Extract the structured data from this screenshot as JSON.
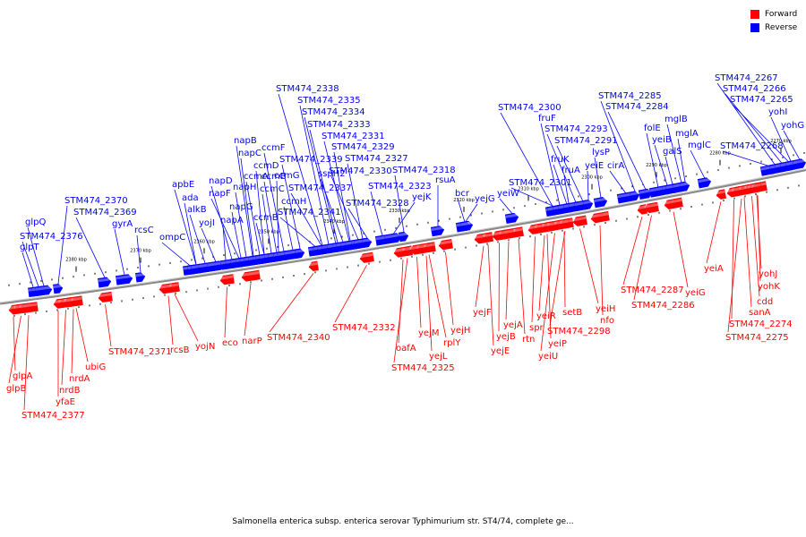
{
  "caption": "Salmonella enterica subsp. enterica serovar Typhimurium str. ST4/74, complete ge...",
  "legend": [
    {
      "label": "Forward",
      "color": "#ff0000"
    },
    {
      "label": "Reverse",
      "color": "#0000ff"
    }
  ],
  "colors": {
    "forward": "#ff0000",
    "reverse": "#0000ff",
    "backbone": "#888888",
    "tick_text": "#000000"
  },
  "ticks": [
    "2380 kbp",
    "2370 kbp",
    "2360 kbp",
    "2350 kbp",
    "2340 kbp",
    "2330 kbp",
    "2320 kbp",
    "2310 kbp",
    "2300 kbp",
    "2290 kbp",
    "2280 kbp",
    "2270 kbp"
  ],
  "reverse_genes": [
    "glpT",
    "STM474_2376",
    "glpQ",
    "STM474_2370",
    "STM474_2369",
    "gyrA",
    "rcsC",
    "ompC",
    "apbE",
    "ada",
    "alkB",
    "yojI",
    "napA",
    "napD",
    "napF",
    "napG",
    "napH",
    "napB",
    "napC",
    "ccmA",
    "ccmB",
    "ccmD",
    "ccmC",
    "ccmE",
    "ccmG",
    "ccmF",
    "ccmH",
    "STM474_2339",
    "STM474_2341",
    "STM474_2337",
    "STM474_2338",
    "STM474_2335",
    "STM474_2334",
    "STM474_2333",
    "sspH2",
    "STM474_2331",
    "STM474_2329",
    "STM474_2330",
    "STM474_2327",
    "STM474_2328",
    "STM474_2323",
    "yejK",
    "STM474_2318",
    "rsuA",
    "bcr",
    "yejG",
    "yeiW",
    "STM474_2301",
    "STM474_2300",
    "fruF",
    "fruK",
    "fruA",
    "STM474_2293",
    "STM474_2291",
    "yeiE",
    "lysP",
    "cirA",
    "STM474_2285",
    "STM474_2284",
    "folE",
    "yeiB",
    "galS",
    "mglB",
    "mglA",
    "mglC",
    "STM474_2268",
    "STM474_2267",
    "STM474_2266",
    "STM474_2265",
    "yohI",
    "yohG"
  ],
  "forward_genes": [
    "glpA",
    "glpB",
    "STM474_2377",
    "yfaE",
    "nrdB",
    "nrdA",
    "ubiG",
    "STM474_2371",
    "rcsB",
    "yojN",
    "eco",
    "narP",
    "STM474_2340",
    "STM474_2332",
    "oafA",
    "STM474_2325",
    "yejM",
    "yejL",
    "rplY",
    "yejH",
    "yejF",
    "yejE",
    "yejB",
    "yejA",
    "rtn",
    "spr",
    "yeiR",
    "yeiP",
    "yeiU",
    "setB",
    "STM474_2298",
    "yeiH",
    "nfo",
    "STM474_2287",
    "STM474_2286",
    "yeiG",
    "yeiA",
    "STM474_2274",
    "STM474_2275",
    "sanA",
    "cdd",
    "yohK",
    "yohJ"
  ]
}
